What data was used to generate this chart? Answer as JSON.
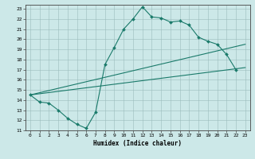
{
  "xlabel": "Humidex (Indice chaleur)",
  "bg_color": "#cce8e8",
  "line_color": "#1a7a6a",
  "xlim": [
    -0.5,
    23.5
  ],
  "ylim": [
    11,
    23.4
  ],
  "xticks": [
    0,
    1,
    2,
    3,
    4,
    5,
    6,
    7,
    8,
    9,
    10,
    11,
    12,
    13,
    14,
    15,
    16,
    17,
    18,
    19,
    20,
    21,
    22,
    23
  ],
  "yticks": [
    11,
    12,
    13,
    14,
    15,
    16,
    17,
    18,
    19,
    20,
    21,
    22,
    23
  ],
  "series1_x": [
    0,
    1,
    2,
    3,
    4,
    5,
    6,
    7,
    8,
    9,
    10,
    11,
    12,
    13,
    14,
    15,
    16,
    17,
    18,
    19,
    20,
    21,
    22
  ],
  "series1_y": [
    14.5,
    13.8,
    13.7,
    13.0,
    12.2,
    11.6,
    11.2,
    12.8,
    17.5,
    19.2,
    21.0,
    22.0,
    23.2,
    22.2,
    22.1,
    21.7,
    21.8,
    21.4,
    20.2,
    19.8,
    19.5,
    18.5,
    17.0
  ],
  "series2_x": [
    0,
    23
  ],
  "series2_y": [
    14.5,
    19.5
  ],
  "series3_x": [
    0,
    23
  ],
  "series3_y": [
    14.5,
    17.2
  ]
}
